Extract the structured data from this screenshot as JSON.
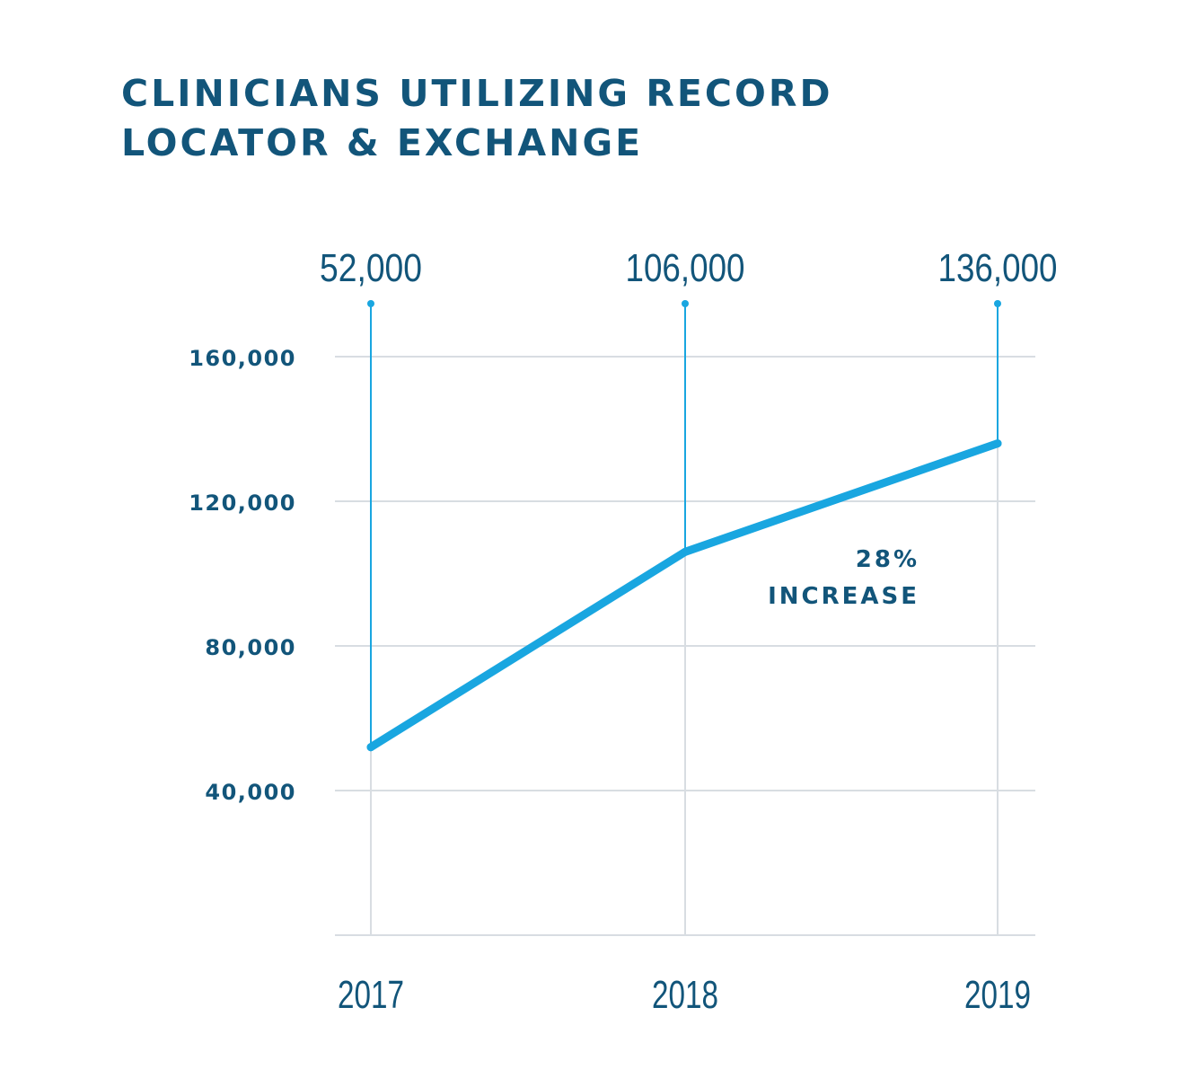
{
  "chart_data": {
    "type": "line",
    "title_lines": [
      "CLINICIANS UTILIZING RECORD",
      "LOCATOR & EXCHANGE"
    ],
    "categories": [
      "2017",
      "2018",
      "2019"
    ],
    "values": [
      52000,
      106000,
      136000
    ],
    "data_labels": [
      "52,000",
      "106,000",
      "136,000"
    ],
    "yticks": [
      40000,
      80000,
      120000,
      160000
    ],
    "ytick_labels": [
      "40,000",
      "80,000",
      "120,000",
      "160,000"
    ],
    "ylim": [
      0,
      160000
    ],
    "grid": "horizontal",
    "annotation": [
      "28%",
      "INCREASE"
    ],
    "colors": {
      "line": "#19a6e0",
      "text": "#12557a",
      "grid": "#d8dde2"
    }
  }
}
